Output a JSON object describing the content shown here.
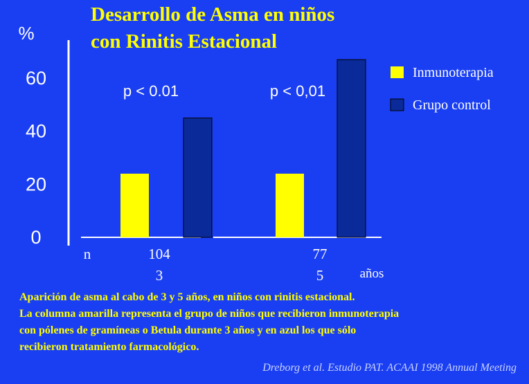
{
  "title_lines": [
    "Desarrollo de Asma en niños",
    "con Rinitis Estacional"
  ],
  "caption_lines": [
    "Aparición de asma  al cabo de 3 y 5 años,  en niños con rinitis estacional.",
    "La columna amarilla representa el grupo de niños que recibieron inmunoterapia",
    "con pólenes de gramíneas o Betula durante 3 años y en azul los que sólo",
    "recibieron tratamiento farmacológico."
  ],
  "source": "Dreborg et al. Estudio PAT. ACAAI 1998 Annual Meeting",
  "colors": {
    "background": "#1a3ff2",
    "title": "#ffff00",
    "axis_text": "#ffffff",
    "inmunoterapia": "#ffff00",
    "grupo_control": "#0a2a9a"
  },
  "chart_data": {
    "type": "bar",
    "title": "Desarrollo de Asma en niños con Rinitis Estacional",
    "ylabel": "%",
    "ylim": [
      0,
      72
    ],
    "yticks": [
      0,
      20,
      40,
      60
    ],
    "grid": false,
    "legend_position": "right",
    "categories": [
      "3",
      "5"
    ],
    "n_label": "n",
    "n_values": [
      "104",
      "77"
    ],
    "x_unit": "años",
    "series": [
      {
        "name": "Inmunoterapia",
        "values": [
          24,
          24
        ]
      },
      {
        "name": "Grupo control",
        "values": [
          45,
          67
        ]
      }
    ],
    "annotations": [
      "p < 0.01",
      "p < 0,01"
    ]
  }
}
